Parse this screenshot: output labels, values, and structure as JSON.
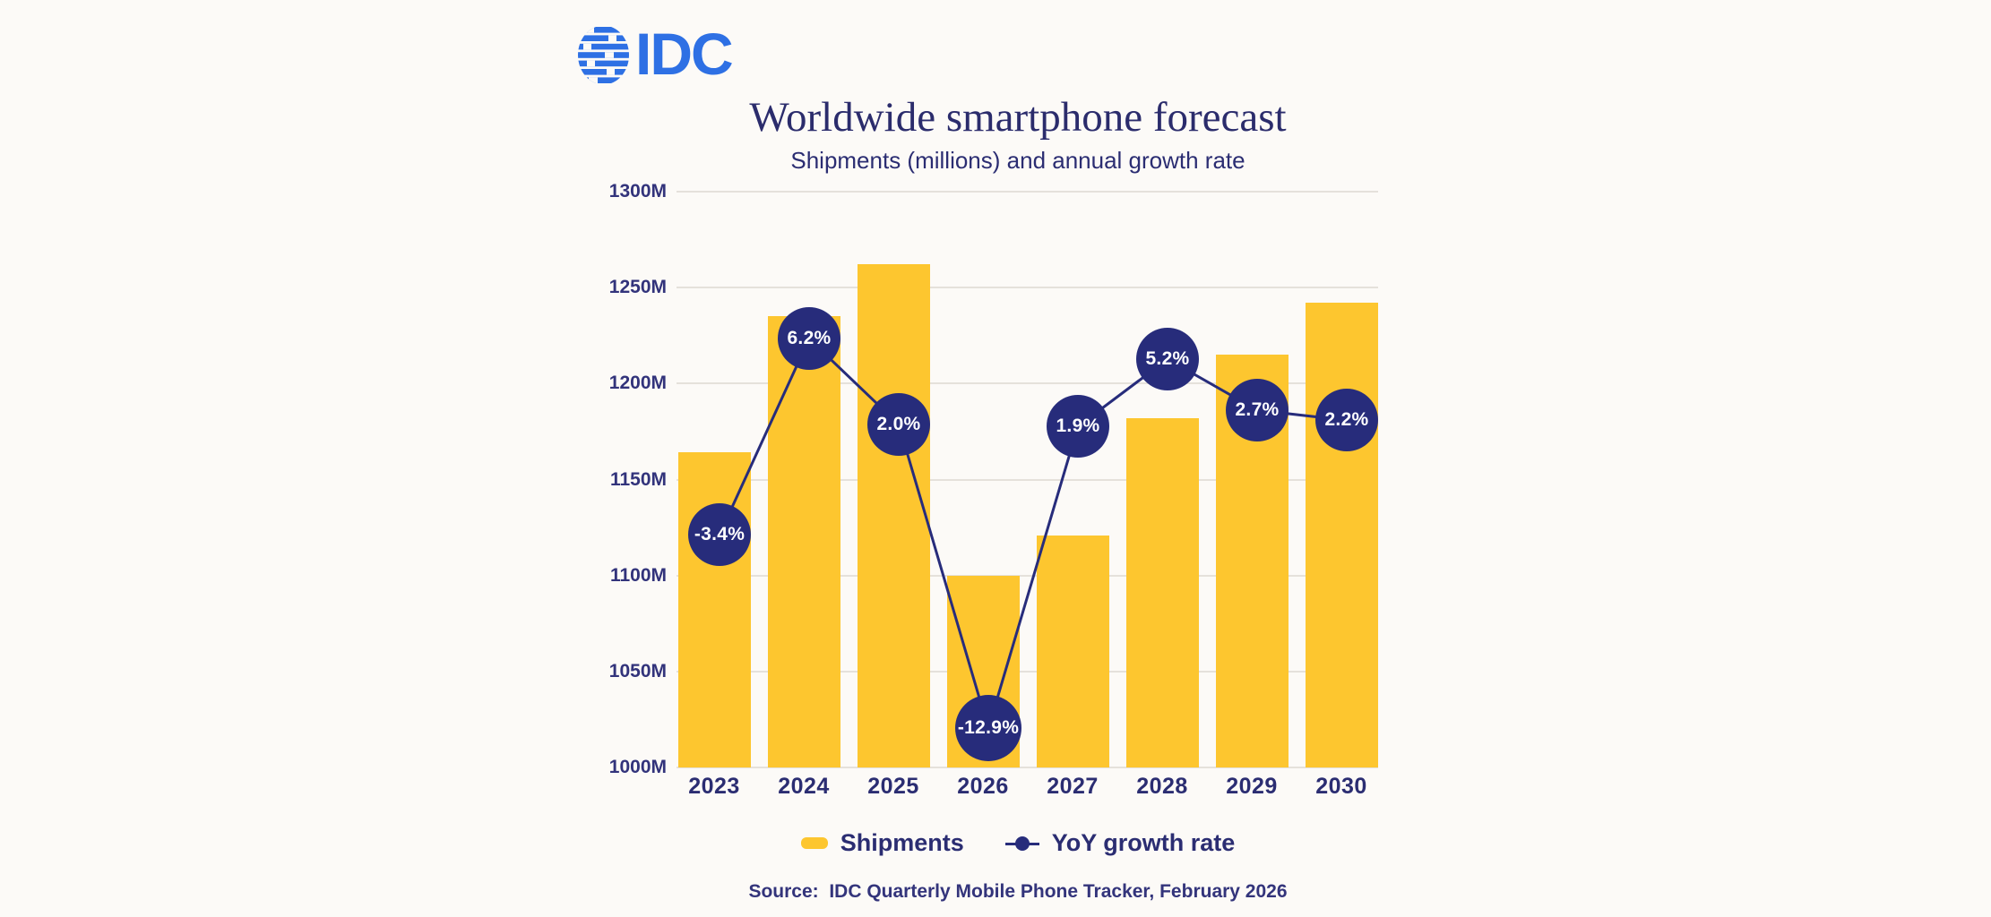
{
  "header": {
    "logo_text": "IDC"
  },
  "chart_data": {
    "type": "combo_bar_line",
    "title": "Worldwide smartphone forecast",
    "subtitle": "Shipments (millions) and annual growth rate",
    "categories": [
      "2023",
      "2024",
      "2025",
      "2026",
      "2027",
      "2028",
      "2029",
      "2030"
    ],
    "series": [
      {
        "name": "Shipments",
        "type": "bar",
        "unit": "millions",
        "values": [
          1164,
          1235,
          1262,
          1100,
          1121,
          1182,
          1215,
          1242
        ]
      },
      {
        "name": "YoY growth rate",
        "type": "line",
        "unit": "percent",
        "values": [
          -3.4,
          6.2,
          2.0,
          -12.9,
          1.9,
          5.2,
          2.7,
          2.2
        ],
        "point_labels": [
          "-3.4%",
          "6.2%",
          "2.0%",
          "-12.9%",
          "1.9%",
          "5.2%",
          "2.7%",
          "2.2%"
        ]
      }
    ],
    "y_axis": {
      "min": 1000,
      "max": 1300,
      "step": 50,
      "tick_labels": [
        "1000M",
        "1050M",
        "1100M",
        "1150M",
        "1200M",
        "1250M",
        "1300M"
      ]
    },
    "secondary_axis": {
      "visible": false,
      "approx_range": [
        -14.8,
        13.4
      ]
    },
    "grid": "horizontal",
    "legend_position": "bottom"
  },
  "legend": {
    "shipments_label": "Shipments",
    "yoy_label": "YoY growth rate"
  },
  "source": "Source:  IDC Quarterly Mobile Phone Tracker, February 2026",
  "colors": {
    "background": "#FCFAF7",
    "bar_yellow": "#FDC62F",
    "circle_navy": "#272C7B",
    "text_navy": "#2B2D72",
    "logo_blue": "#2E70E4",
    "gridline": "#E5E1DB"
  }
}
